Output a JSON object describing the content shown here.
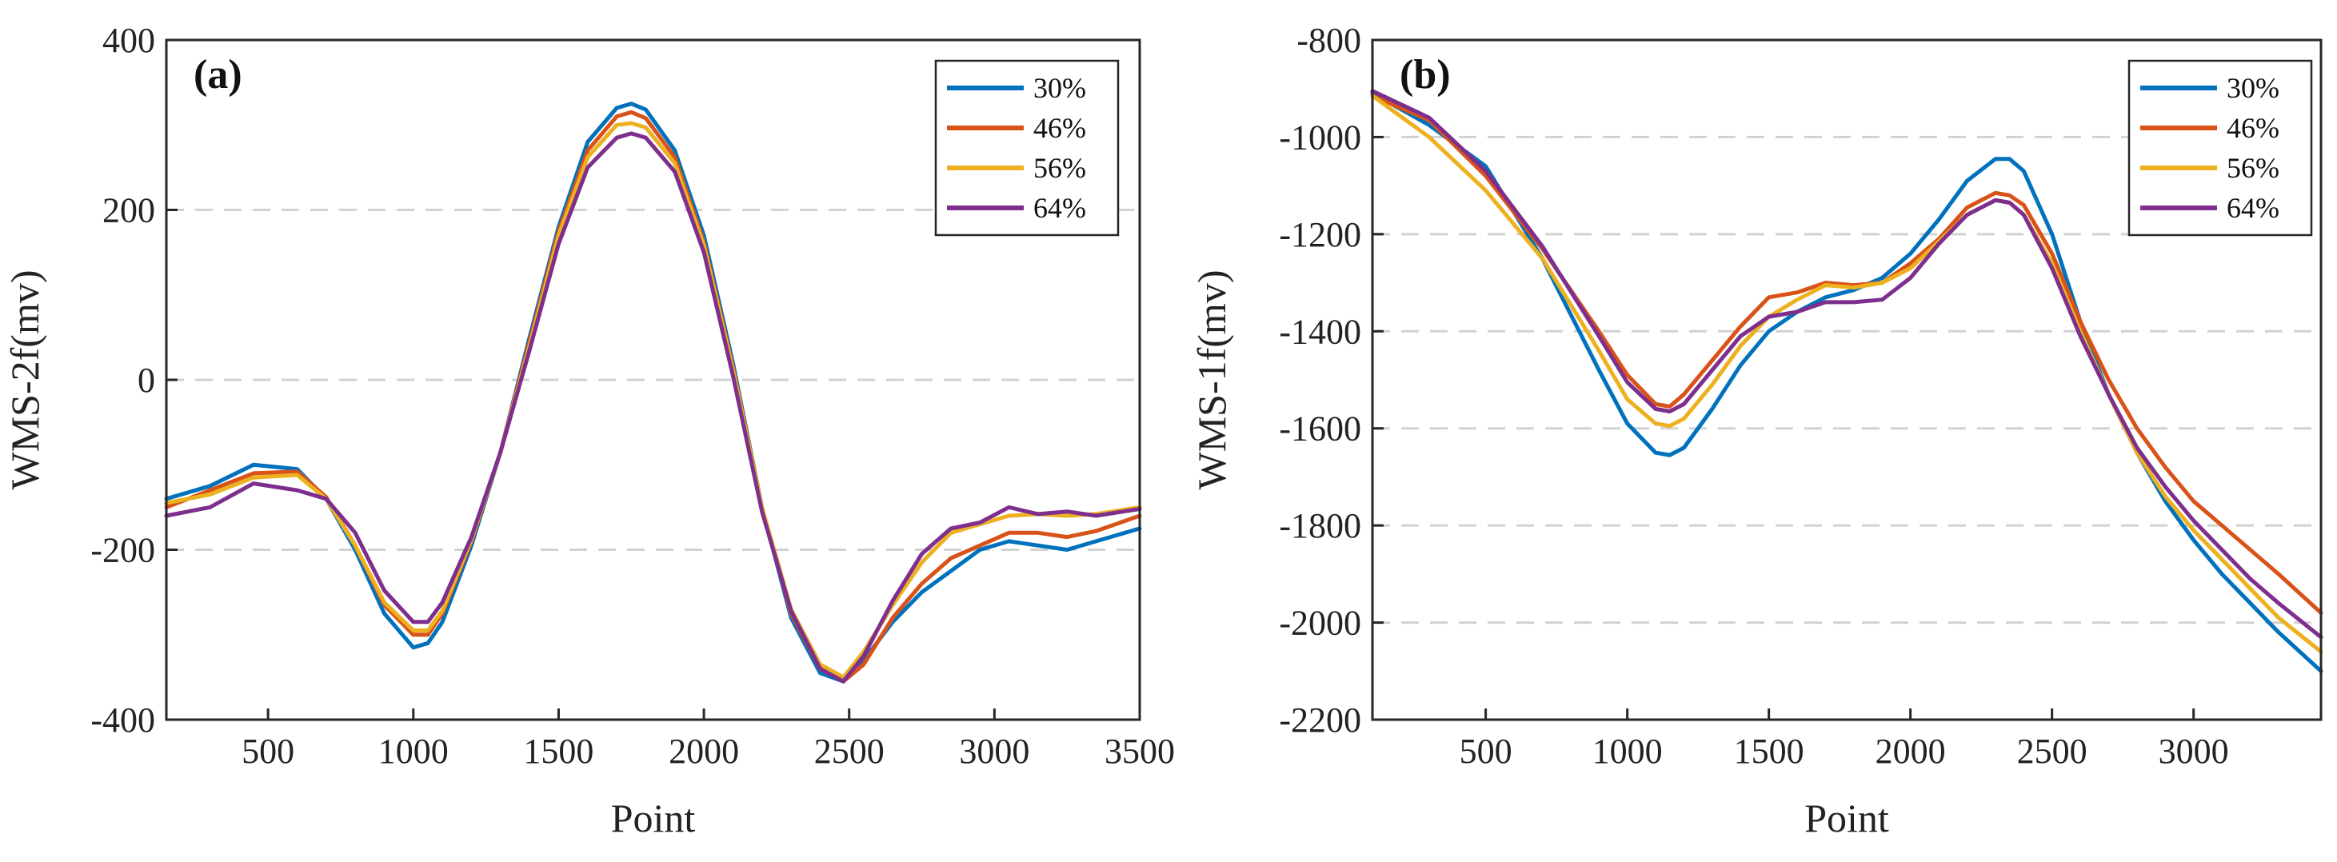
{
  "colors": {
    "30%": "#0072BD",
    "46%": "#D95319",
    "56%": "#EDB120",
    "64%": "#7E2F8E"
  },
  "chart_data": [
    {
      "type": "line",
      "panel_label": "(a)",
      "title": "",
      "xlabel": "Point",
      "ylabel": "WMS-2f(mv)",
      "xlim": [
        150,
        3500
      ],
      "ylim": [
        -400,
        400
      ],
      "xticks": [
        500,
        1000,
        1500,
        2000,
        2500,
        3000,
        3500
      ],
      "yticks": [
        -400,
        -200,
        0,
        200,
        400
      ],
      "grid": "horizontal dashed",
      "legend": "top-right",
      "series": [
        {
          "name": "30%",
          "x": [
            150,
            300,
            450,
            600,
            700,
            800,
            900,
            1000,
            1050,
            1100,
            1200,
            1300,
            1400,
            1500,
            1600,
            1700,
            1750,
            1800,
            1900,
            2000,
            2100,
            2200,
            2300,
            2400,
            2480,
            2550,
            2650,
            2750,
            2850,
            2950,
            3050,
            3150,
            3250,
            3350,
            3500
          ],
          "y": [
            -140,
            -125,
            -100,
            -105,
            -140,
            -200,
            -275,
            -315,
            -310,
            -285,
            -195,
            -85,
            50,
            180,
            280,
            320,
            325,
            318,
            270,
            170,
            20,
            -150,
            -280,
            -345,
            -355,
            -330,
            -285,
            -250,
            -225,
            -200,
            -190,
            -195,
            -200,
            -190,
            -175
          ]
        },
        {
          "name": "46%",
          "x": [
            150,
            300,
            450,
            600,
            700,
            800,
            900,
            1000,
            1050,
            1100,
            1200,
            1300,
            1400,
            1500,
            1600,
            1700,
            1750,
            1800,
            1900,
            2000,
            2100,
            2200,
            2300,
            2400,
            2480,
            2550,
            2650,
            2750,
            2850,
            2950,
            3050,
            3150,
            3250,
            3350,
            3500
          ],
          "y": [
            -150,
            -130,
            -110,
            -108,
            -138,
            -195,
            -265,
            -300,
            -300,
            -275,
            -190,
            -85,
            45,
            175,
            270,
            310,
            315,
            308,
            262,
            162,
            15,
            -150,
            -275,
            -340,
            -355,
            -335,
            -280,
            -240,
            -210,
            -195,
            -180,
            -180,
            -185,
            -178,
            -160
          ]
        },
        {
          "name": "56%",
          "x": [
            150,
            300,
            450,
            600,
            700,
            800,
            900,
            1000,
            1050,
            1100,
            1200,
            1300,
            1400,
            1500,
            1600,
            1700,
            1750,
            1800,
            1900,
            2000,
            2100,
            2200,
            2300,
            2400,
            2480,
            2550,
            2650,
            2750,
            2850,
            2950,
            3050,
            3150,
            3250,
            3350,
            3500
          ],
          "y": [
            -145,
            -135,
            -115,
            -112,
            -140,
            -195,
            -262,
            -295,
            -295,
            -272,
            -188,
            -85,
            40,
            170,
            262,
            300,
            302,
            297,
            255,
            158,
            12,
            -150,
            -270,
            -335,
            -350,
            -320,
            -265,
            -215,
            -180,
            -170,
            -160,
            -158,
            -160,
            -158,
            -150
          ]
        },
        {
          "name": "64%",
          "x": [
            150,
            300,
            450,
            600,
            700,
            800,
            900,
            1000,
            1050,
            1100,
            1200,
            1300,
            1400,
            1500,
            1600,
            1700,
            1750,
            1800,
            1900,
            2000,
            2100,
            2200,
            2300,
            2400,
            2480,
            2550,
            2650,
            2750,
            2850,
            2950,
            3050,
            3150,
            3250,
            3350,
            3500
          ],
          "y": [
            -160,
            -150,
            -122,
            -130,
            -140,
            -180,
            -248,
            -285,
            -285,
            -262,
            -185,
            -85,
            35,
            160,
            250,
            285,
            290,
            285,
            245,
            150,
            5,
            -155,
            -272,
            -340,
            -355,
            -325,
            -260,
            -205,
            -175,
            -168,
            -150,
            -158,
            -155,
            -160,
            -152
          ]
        }
      ]
    },
    {
      "type": "line",
      "panel_label": "(b)",
      "title": "",
      "xlabel": "Point",
      "ylabel": "WMS-1f(mv)",
      "xlim": [
        100,
        3450
      ],
      "ylim": [
        -2200,
        -800
      ],
      "xticks": [
        500,
        1000,
        1500,
        2000,
        2500,
        3000
      ],
      "yticks": [
        -2200,
        -2000,
        -1800,
        -1600,
        -1400,
        -1200,
        -1000,
        -800
      ],
      "grid": "horizontal dashed",
      "legend": "top-right",
      "series": [
        {
          "name": "30%",
          "x": [
            100,
            300,
            500,
            700,
            900,
            1000,
            1100,
            1150,
            1200,
            1300,
            1400,
            1500,
            1600,
            1700,
            1800,
            1900,
            2000,
            2100,
            2200,
            2300,
            2350,
            2400,
            2500,
            2600,
            2700,
            2800,
            2900,
            3000,
            3100,
            3200,
            3300,
            3450
          ],
          "y": [
            -910,
            -975,
            -1060,
            -1250,
            -1480,
            -1590,
            -1650,
            -1655,
            -1640,
            -1560,
            -1470,
            -1400,
            -1360,
            -1330,
            -1315,
            -1290,
            -1240,
            -1170,
            -1090,
            -1045,
            -1045,
            -1070,
            -1200,
            -1380,
            -1530,
            -1650,
            -1750,
            -1830,
            -1900,
            -1960,
            -2020,
            -2100
          ]
        },
        {
          "name": "46%",
          "x": [
            100,
            300,
            500,
            700,
            900,
            1000,
            1100,
            1150,
            1200,
            1300,
            1400,
            1500,
            1600,
            1700,
            1800,
            1900,
            2000,
            2100,
            2200,
            2300,
            2350,
            2400,
            2500,
            2600,
            2700,
            2800,
            2900,
            3000,
            3100,
            3200,
            3300,
            3450
          ],
          "y": [
            -915,
            -965,
            -1080,
            -1230,
            -1400,
            -1490,
            -1550,
            -1555,
            -1530,
            -1460,
            -1390,
            -1330,
            -1320,
            -1300,
            -1305,
            -1300,
            -1260,
            -1210,
            -1145,
            -1115,
            -1120,
            -1140,
            -1240,
            -1380,
            -1500,
            -1600,
            -1680,
            -1750,
            -1800,
            -1850,
            -1900,
            -1980
          ]
        },
        {
          "name": "56%",
          "x": [
            100,
            300,
            500,
            700,
            900,
            1000,
            1100,
            1150,
            1200,
            1300,
            1400,
            1500,
            1600,
            1700,
            1800,
            1900,
            2000,
            2100,
            2200,
            2300,
            2350,
            2400,
            2500,
            2600,
            2700,
            2800,
            2900,
            3000,
            3100,
            3200,
            3300,
            3450
          ],
          "y": [
            -915,
            -1000,
            -1110,
            -1250,
            -1440,
            -1540,
            -1590,
            -1595,
            -1580,
            -1510,
            -1430,
            -1370,
            -1335,
            -1305,
            -1310,
            -1300,
            -1270,
            -1215,
            -1160,
            -1130,
            -1135,
            -1160,
            -1260,
            -1400,
            -1530,
            -1650,
            -1740,
            -1810,
            -1870,
            -1930,
            -1990,
            -2060
          ]
        },
        {
          "name": "64%",
          "x": [
            100,
            300,
            500,
            700,
            900,
            1000,
            1100,
            1150,
            1200,
            1300,
            1400,
            1500,
            1600,
            1700,
            1800,
            1900,
            2000,
            2100,
            2200,
            2300,
            2350,
            2400,
            2500,
            2600,
            2700,
            2800,
            2900,
            3000,
            3100,
            3200,
            3300,
            3450
          ],
          "y": [
            -905,
            -960,
            -1070,
            -1225,
            -1410,
            -1505,
            -1560,
            -1565,
            -1550,
            -1480,
            -1410,
            -1370,
            -1360,
            -1340,
            -1340,
            -1335,
            -1290,
            -1220,
            -1160,
            -1130,
            -1135,
            -1160,
            -1270,
            -1410,
            -1530,
            -1640,
            -1720,
            -1790,
            -1850,
            -1910,
            -1960,
            -2030
          ]
        }
      ]
    }
  ]
}
